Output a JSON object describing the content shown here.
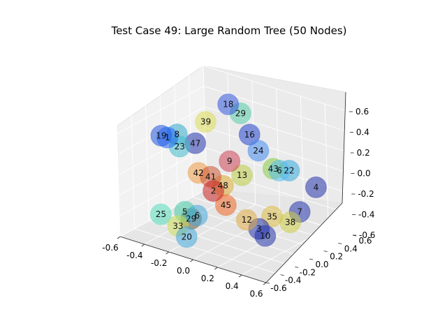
{
  "chart_data": {
    "type": "scatter",
    "title": "Test Case 49: Large Random Tree (50 Nodes)",
    "projection": "3d",
    "grid": true,
    "xlim": [
      -0.6,
      0.6
    ],
    "ylim": [
      -0.6,
      0.6
    ],
    "zlim": [
      -0.6,
      0.6
    ],
    "x_ticks": [
      "-0.6",
      "-0.4",
      "-0.2",
      "0.0",
      "0.2",
      "0.4",
      "0.6"
    ],
    "y_ticks": [
      "-0.6",
      "-0.4",
      "-0.2",
      "0.0",
      "0.2",
      "0.4",
      "0.6"
    ],
    "z_ticks": [
      "-0.6",
      "-0.4",
      "-0.2",
      "0.0",
      "0.2",
      "0.4",
      "0.6"
    ],
    "colormap": "jet",
    "nodes": [
      {
        "label": "18",
        "x": -0.25,
        "y": 0.35,
        "z": 0.45,
        "color": "#3355dd"
      },
      {
        "label": "29",
        "x": -0.15,
        "y": 0.35,
        "z": 0.4,
        "color": "#55ccaa"
      },
      {
        "label": "39",
        "x": -0.35,
        "y": 0.2,
        "z": 0.3,
        "color": "#dddd55"
      },
      {
        "label": "16",
        "x": -0.05,
        "y": 0.3,
        "z": 0.25,
        "color": "#2244cc"
      },
      {
        "label": "19",
        "x": -0.6,
        "y": 0.0,
        "z": 0.15,
        "color": "#2255dd"
      },
      {
        "label": "1",
        "x": -0.55,
        "y": 0.0,
        "z": 0.15,
        "color": "#2266ee"
      },
      {
        "label": "8",
        "x": -0.5,
        "y": 0.05,
        "z": 0.18,
        "color": "#33aacc"
      },
      {
        "label": "23",
        "x": -0.45,
        "y": 0.0,
        "z": 0.1,
        "color": "#44bbcc"
      },
      {
        "label": "47",
        "x": -0.35,
        "y": 0.05,
        "z": 0.15,
        "color": "#2233aa"
      },
      {
        "label": "24",
        "x": 0.05,
        "y": 0.25,
        "z": 0.15,
        "color": "#4488ee"
      },
      {
        "label": "43",
        "x": 0.2,
        "y": 0.2,
        "z": 0.05,
        "color": "#88cc44"
      },
      {
        "label": "6",
        "x": 0.25,
        "y": 0.2,
        "z": 0.05,
        "color": "#55bbee"
      },
      {
        "label": "22",
        "x": 0.3,
        "y": 0.25,
        "z": 0.05,
        "color": "#33aadd"
      },
      {
        "label": "4",
        "x": 0.55,
        "y": 0.2,
        "z": 0.0,
        "color": "#2233aa"
      },
      {
        "label": "9",
        "x": -0.1,
        "y": 0.1,
        "z": 0.05,
        "color": "#cc4455"
      },
      {
        "label": "13",
        "x": 0.0,
        "y": 0.1,
        "z": -0.05,
        "color": "#bbcc44"
      },
      {
        "label": "7",
        "x": 0.5,
        "y": 0.05,
        "z": -0.2,
        "color": "#2233aa"
      },
      {
        "label": "42",
        "x": -0.3,
        "y": 0.0,
        "z": -0.1,
        "color": "#ee9944"
      },
      {
        "label": "41",
        "x": -0.2,
        "y": 0.0,
        "z": -0.1,
        "color": "#cc5533"
      },
      {
        "label": "48",
        "x": -0.1,
        "y": 0.0,
        "z": -0.15,
        "color": "#ddaa33"
      },
      {
        "label": "2",
        "x": -0.15,
        "y": -0.05,
        "z": -0.2,
        "color": "#cc2222"
      },
      {
        "label": "45",
        "x": -0.05,
        "y": -0.05,
        "z": -0.3,
        "color": "#ee6622"
      },
      {
        "label": "35",
        "x": 0.3,
        "y": 0.0,
        "z": -0.3,
        "color": "#ddbb44"
      },
      {
        "label": "38",
        "x": 0.45,
        "y": 0.0,
        "z": -0.3,
        "color": "#cccc44"
      },
      {
        "label": "12",
        "x": 0.15,
        "y": -0.1,
        "z": -0.35,
        "color": "#ddaa44"
      },
      {
        "label": "3",
        "x": 0.25,
        "y": -0.1,
        "z": -0.4,
        "color": "#2233aa"
      },
      {
        "label": "10",
        "x": 0.3,
        "y": -0.1,
        "z": -0.45,
        "color": "#2233aa"
      },
      {
        "label": "25",
        "x": -0.5,
        "y": -0.2,
        "z": -0.5,
        "color": "#55ddbb"
      },
      {
        "label": "5",
        "x": -0.3,
        "y": -0.2,
        "z": -0.4,
        "color": "#44ccaa"
      },
      {
        "label": "29",
        "x": -0.25,
        "y": -0.2,
        "z": -0.45,
        "color": "#775533"
      },
      {
        "label": "6",
        "x": -0.2,
        "y": -0.2,
        "z": -0.4,
        "color": "#44aadd"
      },
      {
        "label": "33",
        "x": -0.3,
        "y": -0.3,
        "z": -0.5,
        "color": "#ccdd55"
      },
      {
        "label": "20",
        "x": -0.2,
        "y": -0.35,
        "z": -0.55,
        "color": "#44aadd"
      }
    ]
  }
}
